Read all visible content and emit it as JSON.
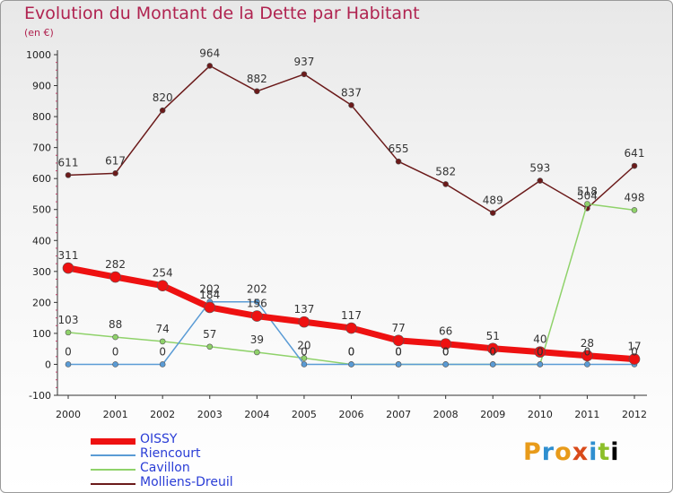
{
  "title": "Evolution du Montant de la Dette par Habitant",
  "subtitle": "(en €)",
  "logo_text": "Proxiti",
  "chart_data": {
    "type": "line",
    "x": [
      "2000",
      "2001",
      "2002",
      "2003",
      "2004",
      "2005",
      "2006",
      "2007",
      "2008",
      "2009",
      "2010",
      "2011",
      "2012"
    ],
    "ylim": [
      -100,
      1000
    ],
    "y_ticks": [
      "-100",
      "0",
      "100",
      "200",
      "300",
      "400",
      "500",
      "600",
      "700",
      "800",
      "900",
      "1000"
    ],
    "grid": false,
    "legend_position": "bottom-left",
    "series": [
      {
        "name": "OISSY",
        "color": "#ee1111",
        "values": [
          311,
          282,
          254,
          184,
          156,
          137,
          117,
          77,
          66,
          51,
          40,
          28,
          17
        ]
      },
      {
        "name": "Riencourt",
        "color": "#5a9bd5",
        "values": [
          0,
          0,
          0,
          202,
          202,
          0,
          0,
          0,
          0,
          0,
          0,
          0,
          0
        ]
      },
      {
        "name": "Cavillon",
        "color": "#8fd26a",
        "values": [
          103,
          88,
          74,
          57,
          39,
          20,
          0,
          0,
          0,
          0,
          0,
          518,
          498
        ]
      },
      {
        "name": "Molliens-Dreuil",
        "color": "#6b1a1a",
        "values": [
          611,
          617,
          820,
          964,
          882,
          937,
          837,
          655,
          582,
          489,
          593,
          504,
          641
        ]
      }
    ]
  }
}
